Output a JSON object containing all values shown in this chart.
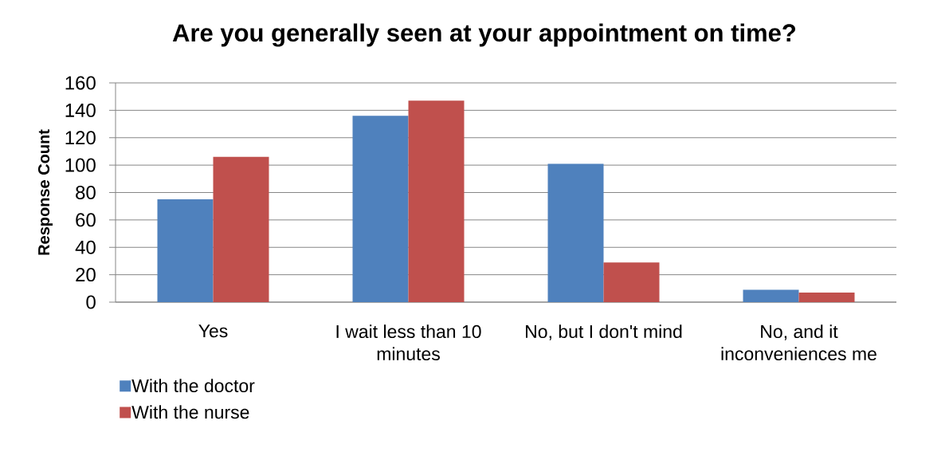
{
  "chart_data": {
    "type": "bar",
    "title": "Are you generally seen at your appointment on time?",
    "ylabel": "Response Count",
    "categories": [
      "Yes",
      "I wait less than 10 minutes",
      "No, but I don't mind",
      "No, and it inconveniences me"
    ],
    "series": [
      {
        "name": "With the doctor",
        "color": "#4f81bd",
        "values": [
          75,
          136,
          101,
          9
        ]
      },
      {
        "name": "With the nurse",
        "color": "#c0504d",
        "values": [
          106,
          147,
          29,
          7
        ]
      }
    ],
    "ylim": [
      0,
      160
    ],
    "yticks": [
      0,
      20,
      40,
      60,
      80,
      100,
      120,
      140,
      160
    ],
    "grid": "y",
    "legend": "bottom left"
  }
}
